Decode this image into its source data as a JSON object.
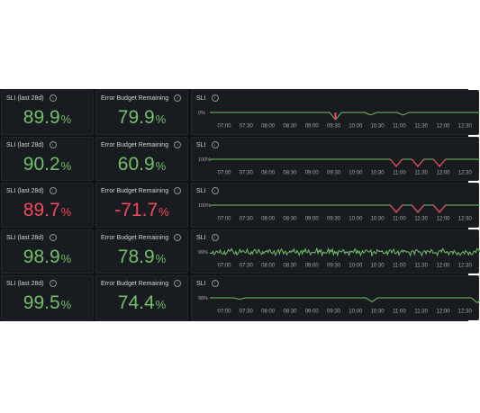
{
  "colors": {
    "ok": "#73bf69",
    "bad": "#f2495c",
    "text": "#d0d2d8",
    "axis": "#a4a6ad",
    "bg": "#181b1f"
  },
  "rows": [
    {
      "sli_title": "SLI (last 28d)",
      "sli_value": "89.9",
      "sli_unit": "%",
      "sli_status": "ok",
      "budget_title": "Error Budget Remaining",
      "budget_value": "79.9",
      "budget_unit": "%",
      "budget_status": "ok",
      "ts_title": "SLI",
      "ts_ylabel": "0%",
      "ts_dips": [
        {
          "at": 0.465,
          "depth": 1,
          "color": "red"
        },
        {
          "at": 0.595,
          "depth": 0.35,
          "color": "green"
        },
        {
          "at": 0.715,
          "depth": 0.35,
          "color": "green"
        }
      ],
      "ts_noise": 0
    },
    {
      "sli_title": "SLI (last 28d)",
      "sli_value": "90.2",
      "sli_unit": "%",
      "sli_status": "ok",
      "budget_title": "Error Budget Remaining",
      "budget_value": "60.9",
      "budget_unit": "%",
      "budget_status": "ok",
      "ts_title": "SLI",
      "ts_ylabel": "100%",
      "ts_dips": [
        {
          "at": 0.69,
          "depth": 1,
          "color": "red"
        },
        {
          "at": 0.77,
          "depth": 1,
          "color": "red"
        },
        {
          "at": 0.85,
          "depth": 1,
          "color": "red"
        }
      ],
      "ts_noise": 0
    },
    {
      "sli_title": "SLI (last 28d)",
      "sli_value": "89.7",
      "sli_unit": "%",
      "sli_status": "bad",
      "budget_title": "Error Budget Remaining",
      "budget_value": "-71.7",
      "budget_unit": "%",
      "budget_status": "bad",
      "ts_title": "SLI",
      "ts_ylabel": "100%",
      "ts_dips": [
        {
          "at": 0.69,
          "depth": 1,
          "color": "red"
        },
        {
          "at": 0.77,
          "depth": 1,
          "color": "red"
        },
        {
          "at": 0.85,
          "depth": 1,
          "color": "red"
        }
      ],
      "ts_noise": 0
    },
    {
      "sli_title": "SLI (last 28d)",
      "sli_value": "98.9",
      "sli_unit": "%",
      "sli_status": "ok",
      "budget_title": "Error Budget Remaining",
      "budget_value": "78.9",
      "budget_unit": "%",
      "budget_status": "ok",
      "ts_title": "SLI",
      "ts_ylabel": "99%",
      "ts_dips": [],
      "ts_noise": 1
    },
    {
      "sli_title": "SLI (last 28d)",
      "sli_value": "99.5",
      "sli_unit": "%",
      "sli_status": "ok",
      "budget_title": "Error Budget Remaining",
      "budget_value": "74.4",
      "budget_unit": "%",
      "budget_status": "ok",
      "ts_title": "SLI",
      "ts_ylabel": "98%",
      "ts_dips": [
        {
          "at": 0.11,
          "depth": 0.2,
          "color": "green"
        },
        {
          "at": 0.6,
          "depth": 0.55,
          "color": "green"
        },
        {
          "at": 0.99,
          "depth": 0.7,
          "color": "green"
        }
      ],
      "ts_noise": 0
    }
  ],
  "x_ticks": [
    "07:00",
    "07:30",
    "08:00",
    "08:30",
    "09:00",
    "09:30",
    "10:00",
    "10:30",
    "11:00",
    "11:30",
    "12:00",
    "12:30"
  ]
}
